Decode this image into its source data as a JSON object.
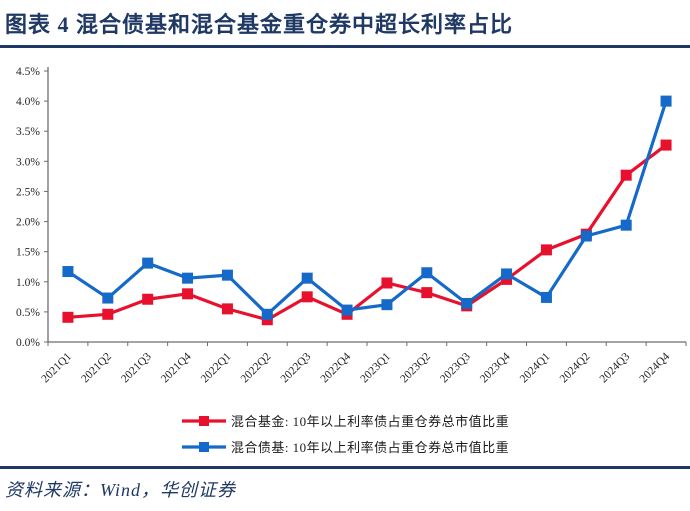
{
  "header": {
    "title": "图表 4  混合债基和混合基金重仓券中超长利率占比"
  },
  "footer": {
    "source": "资料来源：Wind，华创证券"
  },
  "colors": {
    "accent_navy": "#1f3864",
    "series_red": "#e8112d",
    "series_blue": "#1569c8",
    "axis": "#6e6e6e",
    "tick_label": "#262626"
  },
  "chart_data": {
    "type": "line",
    "marker": "square",
    "grid": false,
    "legend_position": "bottom",
    "title": "混合债基和混合基金重仓券中超长利率占比",
    "xlabel": "",
    "ylabel": "",
    "ylim": [
      0,
      4.5
    ],
    "ytick_step": 0.5,
    "ytick_suffix": "%",
    "categories": [
      "2021Q1",
      "2021Q2",
      "2021Q3",
      "2021Q4",
      "2022Q1",
      "2022Q2",
      "2022Q3",
      "2022Q4",
      "2023Q1",
      "2023Q2",
      "2023Q3",
      "2023Q4",
      "2024Q1",
      "2024Q2",
      "2024Q3",
      "2024Q4"
    ],
    "series": [
      {
        "name": "混合基金: 10年以上利率债占重仓券总市值比重",
        "color": "#e8112d",
        "values": [
          0.41,
          0.46,
          0.71,
          0.8,
          0.55,
          0.37,
          0.75,
          0.46,
          0.98,
          0.82,
          0.6,
          1.04,
          1.53,
          1.79,
          2.77,
          3.27
        ]
      },
      {
        "name": "混合债基: 10年以上利率债占重仓券总市值比重",
        "color": "#1569c8",
        "values": [
          1.17,
          0.73,
          1.31,
          1.06,
          1.11,
          0.46,
          1.06,
          0.53,
          0.62,
          1.15,
          0.64,
          1.13,
          0.74,
          1.76,
          1.94,
          4.0
        ]
      }
    ]
  }
}
